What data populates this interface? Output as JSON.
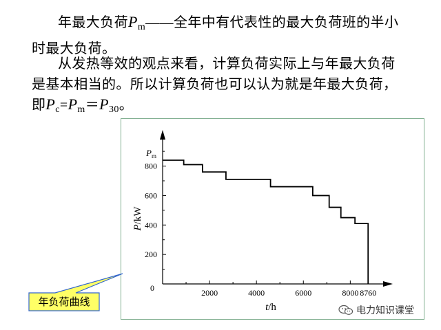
{
  "text": {
    "line1_prefix": "年最大负荷",
    "line1_sym": "P",
    "line1_sub": "m",
    "line1_dash": "——",
    "line1_rest": "全年中有代表性的最大负荷班的半小",
    "line2": "时最大负荷。",
    "line3": "从发热等效的观点来看，计算负荷实际上与年最大负荷",
    "line4": "是基本相当的。所以计算负荷也可以认为就是年最大负荷，",
    "line5_prefix": "即",
    "line5_p1": "P",
    "line5_s1": "c",
    "line5_eq1": "=",
    "line5_p2": "P",
    "line5_s2": "m",
    "line5_eq2": "＝",
    "line5_p3": "P",
    "line5_s3": "30",
    "line5_end": "。"
  },
  "callout": {
    "label": "年负荷曲线",
    "fill": "#ffff66",
    "stroke": "#3366cc"
  },
  "watermark": {
    "text": "电力知识课堂",
    "icon": "wechat-icon"
  },
  "chart_data": {
    "type": "line",
    "step": true,
    "x": [
      0,
      900,
      1700,
      2700,
      4600,
      6400,
      7100,
      7600,
      8200,
      8760
    ],
    "y": [
      840,
      810,
      760,
      710,
      660,
      600,
      520,
      450,
      410,
      0
    ],
    "xlim": [
      0,
      9400
    ],
    "ylim": [
      0,
      980
    ],
    "xticks": [
      2000,
      4000,
      6000,
      8000,
      8760
    ],
    "yticks": [
      200,
      400,
      600,
      800
    ],
    "origin_label": "0",
    "xlabel": {
      "sym": "t",
      "unit": "/h"
    },
    "ylabel": {
      "sym": "P",
      "unit": "/kW"
    },
    "ymax_label": {
      "sym": "P",
      "sub": "m"
    },
    "grid": false,
    "color": "#000000"
  }
}
